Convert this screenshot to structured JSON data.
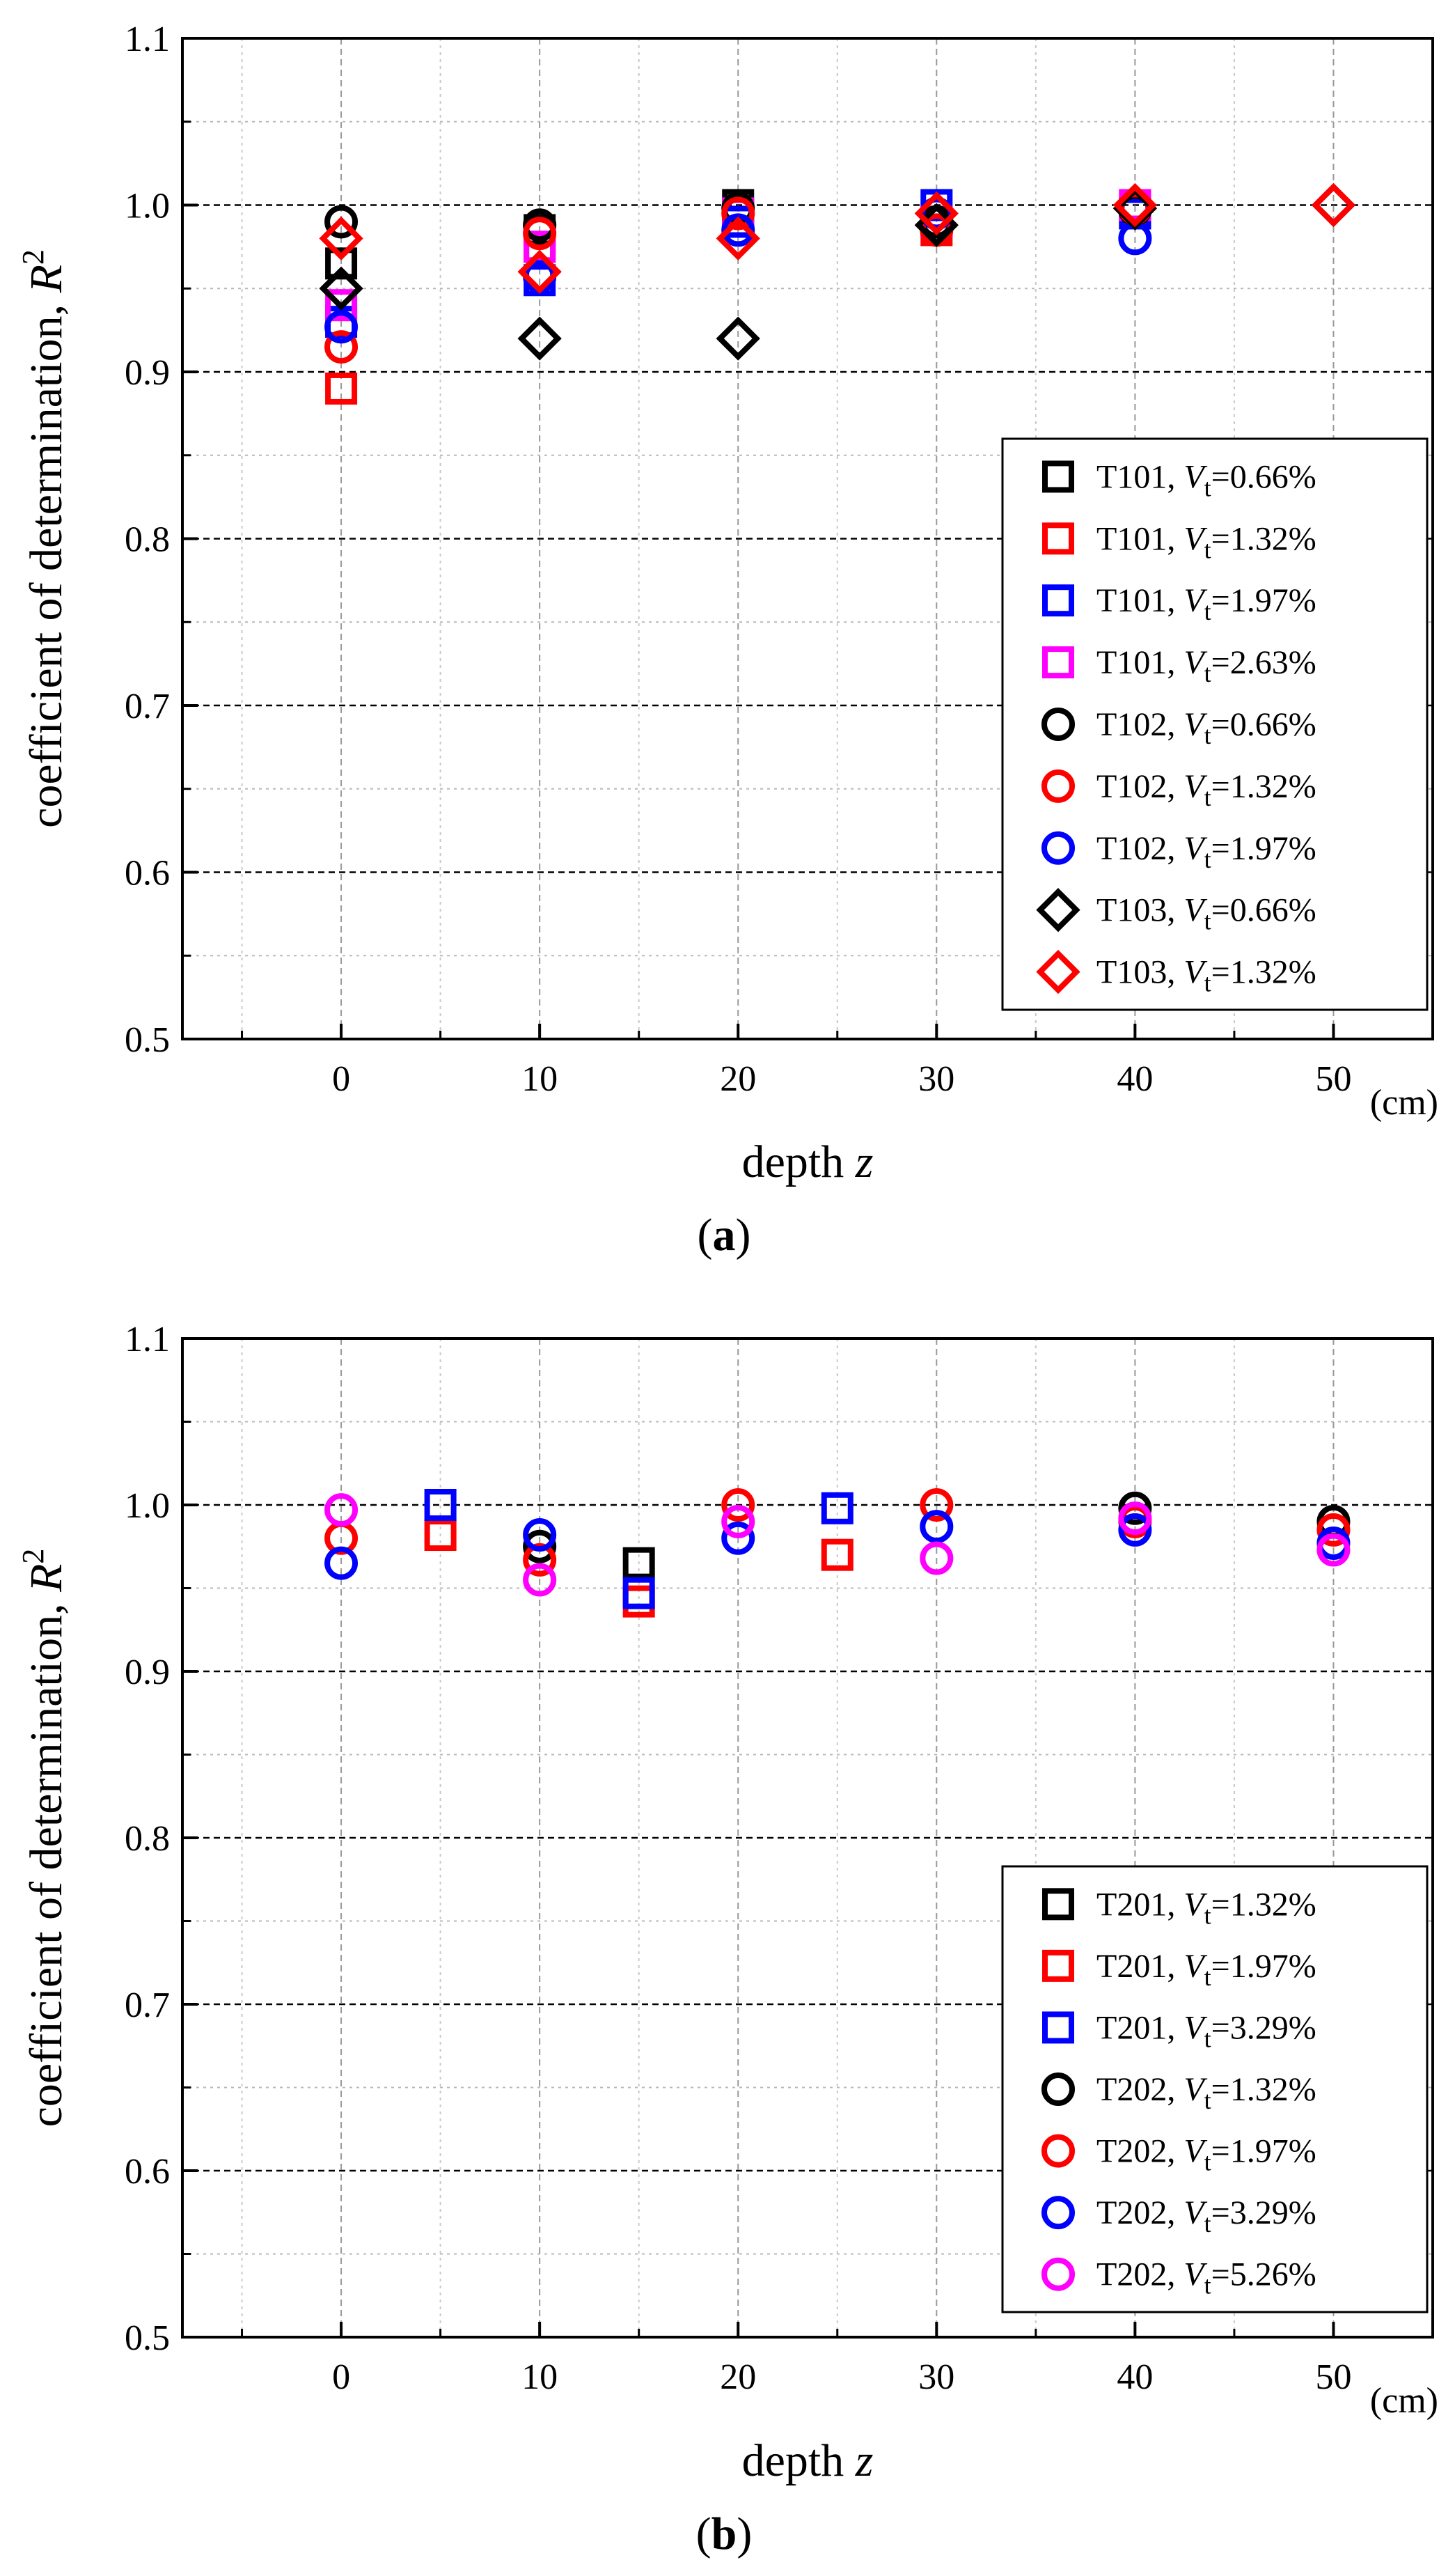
{
  "chart_data": [
    {
      "id": "a",
      "type": "scatter",
      "caption": {
        "open": "(",
        "letter": "a",
        "close": ")"
      },
      "xlabel": {
        "text": "depth ",
        "italic": "z"
      },
      "ylabel": {
        "text": "coefficient of determination, ",
        "italic": "R",
        "sup": "2"
      },
      "x_unit": "(cm)",
      "xlim": [
        -8,
        55
      ],
      "ylim": [
        0.5,
        1.1
      ],
      "xticks": [
        0,
        10,
        20,
        30,
        40,
        50
      ],
      "xtick_labels": [
        "0",
        "10",
        "20",
        "30",
        "40",
        "50"
      ],
      "yticks": [
        0.5,
        0.6,
        0.7,
        0.8,
        0.9,
        1.0,
        1.1
      ],
      "ytick_labels": [
        "0.5",
        "0.6",
        "0.7",
        "0.8",
        "0.9",
        "1.0",
        "1.1"
      ],
      "legend_position": "bottom-right",
      "series": [
        {
          "name": "T101",
          "vt": "0.66%",
          "marker": "square",
          "color": "#000000",
          "x": [
            0,
            10,
            20,
            30,
            40
          ],
          "y": [
            0.965,
            0.985,
            1.0,
            0.99,
            0.995
          ]
        },
        {
          "name": "T101",
          "vt": "1.32%",
          "marker": "square",
          "color": "#ff0000",
          "x": [
            0,
            10,
            20,
            30,
            40
          ],
          "y": [
            0.89,
            0.975,
            0.995,
            0.985,
            1.0
          ]
        },
        {
          "name": "T101",
          "vt": "1.97%",
          "marker": "square",
          "color": "#0000ff",
          "x": [
            0,
            10,
            20,
            30,
            40
          ],
          "y": [
            0.93,
            0.955,
            0.99,
            1.0,
            0.995
          ]
        },
        {
          "name": "T101",
          "vt": "2.63%",
          "marker": "square",
          "color": "#ff00ff",
          "x": [
            0,
            10,
            20,
            30,
            40
          ],
          "y": [
            0.94,
            0.975,
            0.995,
            0.99,
            1.0
          ]
        },
        {
          "name": "T102",
          "vt": "0.66%",
          "marker": "circle",
          "color": "#000000",
          "x": [
            0,
            10,
            20,
            30,
            40
          ],
          "y": [
            0.99,
            0.988,
            0.998,
            0.99,
            0.997
          ]
        },
        {
          "name": "T102",
          "vt": "1.32%",
          "marker": "circle",
          "color": "#ff0000",
          "x": [
            0,
            10,
            20,
            30,
            40
          ],
          "y": [
            0.915,
            0.983,
            0.995,
            0.985,
            0.998
          ]
        },
        {
          "name": "T102",
          "vt": "1.97%",
          "marker": "circle",
          "color": "#0000ff",
          "x": [
            0,
            10,
            20,
            30,
            40
          ],
          "y": [
            0.927,
            0.957,
            0.985,
            0.995,
            0.98
          ]
        },
        {
          "name": "T103",
          "vt": "0.66%",
          "marker": "diamond",
          "color": "#000000",
          "x": [
            0,
            10,
            20,
            30,
            40,
            50
          ],
          "y": [
            0.95,
            0.92,
            0.92,
            0.988,
            0.998,
            1.0
          ]
        },
        {
          "name": "T103",
          "vt": "1.32%",
          "marker": "diamond",
          "color": "#ff0000",
          "x": [
            0,
            10,
            20,
            30,
            40,
            50
          ],
          "y": [
            0.98,
            0.96,
            0.98,
            0.995,
            1.0,
            1.0
          ]
        }
      ]
    },
    {
      "id": "b",
      "type": "scatter",
      "caption": {
        "open": "(",
        "letter": "b",
        "close": ")"
      },
      "xlabel": {
        "text": "depth ",
        "italic": "z"
      },
      "ylabel": {
        "text": "coefficient of determination, ",
        "italic": "R",
        "sup": "2"
      },
      "x_unit": "(cm)",
      "xlim": [
        -8,
        55
      ],
      "ylim": [
        0.5,
        1.1
      ],
      "xticks": [
        0,
        10,
        20,
        30,
        40,
        50
      ],
      "xtick_labels": [
        "0",
        "10",
        "20",
        "30",
        "40",
        "50"
      ],
      "yticks": [
        0.5,
        0.6,
        0.7,
        0.8,
        0.9,
        1.0,
        1.1
      ],
      "ytick_labels": [
        "0.5",
        "0.6",
        "0.7",
        "0.8",
        "0.9",
        "1.0",
        "1.1"
      ],
      "legend_position": "bottom-right",
      "series": [
        {
          "name": "T201",
          "vt": "1.32%",
          "marker": "square",
          "color": "#000000",
          "x": [
            15
          ],
          "y": [
            0.965
          ]
        },
        {
          "name": "T201",
          "vt": "1.97%",
          "marker": "square",
          "color": "#ff0000",
          "x": [
            5,
            15,
            25
          ],
          "y": [
            0.982,
            0.942,
            0.97
          ]
        },
        {
          "name": "T201",
          "vt": "3.29%",
          "marker": "square",
          "color": "#0000ff",
          "x": [
            5,
            15,
            25
          ],
          "y": [
            1.0,
            0.947,
            0.998
          ]
        },
        {
          "name": "T202",
          "vt": "1.32%",
          "marker": "circle",
          "color": "#000000",
          "x": [
            10,
            40,
            50
          ],
          "y": [
            0.975,
            0.998,
            0.99
          ]
        },
        {
          "name": "T202",
          "vt": "1.97%",
          "marker": "circle",
          "color": "#ff0000",
          "x": [
            0,
            10,
            20,
            30,
            40,
            50
          ],
          "y": [
            0.98,
            0.967,
            1.0,
            1.0,
            0.99,
            0.985
          ]
        },
        {
          "name": "T202",
          "vt": "3.29%",
          "marker": "circle",
          "color": "#0000ff",
          "x": [
            0,
            10,
            20,
            30,
            40,
            50
          ],
          "y": [
            0.965,
            0.982,
            0.98,
            0.987,
            0.985,
            0.977
          ]
        },
        {
          "name": "T202",
          "vt": "5.26%",
          "marker": "circle",
          "color": "#ff00ff",
          "x": [
            0,
            10,
            20,
            30,
            40,
            50
          ],
          "y": [
            0.997,
            0.955,
            0.99,
            0.968,
            0.992,
            0.973
          ]
        }
      ]
    }
  ]
}
